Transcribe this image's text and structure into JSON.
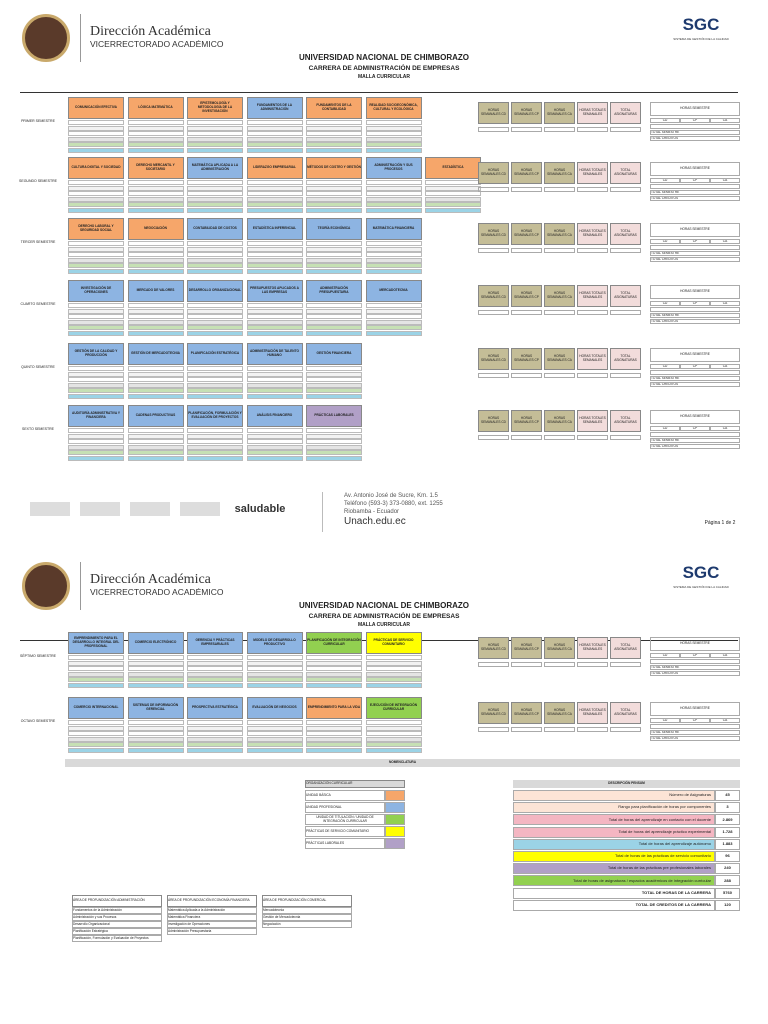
{
  "header": {
    "title": "Dirección Académica",
    "subtitle": "VICERRECTORADO ACADÉMICO",
    "logo": "SGC",
    "logo_note": "SISTEMA DE GESTIÓN DE LA CALIDAD",
    "university": "UNIVERSIDAD NACIONAL DE CHIMBORAZO",
    "career": "CARRERA DE ADMINISTRACIÓN DE EMPRESAS",
    "document": "MALLA CURRICULAR"
  },
  "side_headers": [
    "HORAS SEMANALES CD",
    "HORAS SEMANALES CP",
    "HORAS SEMANALES CA",
    "HORAS TOTALES SEMANALES",
    "TOTAL ASIGNATURAS"
  ],
  "hours": {
    "title": "HORAS SEMESTRE",
    "columns": [
      "CD",
      "CP",
      "CA"
    ],
    "total_semester": "TOTAL SEMESTRE",
    "total_credits": "TOTAL CRÉDITOS"
  },
  "semesters": [
    {
      "label": "PRIMER SEMESTRE",
      "courses": [
        {
          "name": "COMUNICACIÓN EFECTIVA",
          "color": "#f6a66a"
        },
        {
          "name": "LÓGICA MATEMÁTICA",
          "color": "#f6a66a"
        },
        {
          "name": "EPISTEMOLOGÍA Y METODOLOGÍA DE LA INVESTIGACIÓN",
          "color": "#f6a66a"
        },
        {
          "name": "FUNDAMENTOS DE LA ADMINISTRACIÓN",
          "color": "#8db4e2"
        },
        {
          "name": "FUNDAMENTOS DE LA CONTABILIDAD",
          "color": "#f6a66a"
        },
        {
          "name": "REALIDAD SOCIOECONÓMICA, CULTURAL Y ECOLÓGICA",
          "color": "#f6a66a"
        }
      ]
    },
    {
      "label": "SEGUNDO SEMESTRE",
      "courses": [
        {
          "name": "CULTURA DIGITAL Y SOCIEDAD",
          "color": "#f6a66a"
        },
        {
          "name": "DERECHO MERCANTIL Y SOCIETARIO",
          "color": "#f6a66a"
        },
        {
          "name": "MATEMÁTICA APLICADA A LA ADMINISTRACIÓN",
          "color": "#8db4e2"
        },
        {
          "name": "LIDERAZGO EMPRESARIAL",
          "color": "#f6a66a"
        },
        {
          "name": "MÉTODOS DE COSTEO Y GESTIÓN",
          "color": "#f6a66a"
        },
        {
          "name": "ADMINISTRACIÓN Y SUS PROCESOS",
          "color": "#8db4e2"
        },
        {
          "name": "ESTADÍSTICA",
          "color": "#f6a66a"
        }
      ]
    },
    {
      "label": "TERCER SEMESTRE",
      "courses": [
        {
          "name": "DERECHO LABORAL Y SEGURIDAD SOCIAL",
          "color": "#f6a66a"
        },
        {
          "name": "NEGOCIACIÓN",
          "color": "#f6a66a"
        },
        {
          "name": "CONTABILIDAD DE COSTOS",
          "color": "#8db4e2"
        },
        {
          "name": "ESTADÍSTICA INFERENCIAL",
          "color": "#8db4e2"
        },
        {
          "name": "TEORÍA ECONÓMICA",
          "color": "#8db4e2"
        },
        {
          "name": "MATEMÁTICA FINANCIERA",
          "color": "#8db4e2"
        }
      ]
    },
    {
      "label": "CUARTO SEMESTRE",
      "courses": [
        {
          "name": "INVESTIGACIÓN DE OPERACIONES",
          "color": "#8db4e2"
        },
        {
          "name": "MERCADO DE VALORES",
          "color": "#8db4e2"
        },
        {
          "name": "DESARROLLO ORGANIZACIONAL",
          "color": "#8db4e2"
        },
        {
          "name": "PRESUPUESTOS APLICADOS A LAS EMPRESAS",
          "color": "#8db4e2"
        },
        {
          "name": "ADMINISTRACIÓN PRESUPUESTARIA",
          "color": "#8db4e2"
        },
        {
          "name": "MERCADOTECNIA",
          "color": "#8db4e2"
        }
      ]
    },
    {
      "label": "QUINTO SEMESTRE",
      "courses": [
        {
          "name": "GESTIÓN DE LA CALIDAD Y PRODUCCIÓN",
          "color": "#8db4e2"
        },
        {
          "name": "GESTIÓN DE MERCADOTECNIA",
          "color": "#8db4e2"
        },
        {
          "name": "PLANIFICACIÓN ESTRATÉGICA",
          "color": "#8db4e2"
        },
        {
          "name": "ADMINISTRACIÓN DE TALENTO HUMANO",
          "color": "#8db4e2"
        },
        {
          "name": "GESTIÓN FINANCIERA",
          "color": "#8db4e2"
        }
      ]
    },
    {
      "label": "SEXTO SEMESTRE",
      "courses": [
        {
          "name": "AUDITORÍA ADMINISTRATIVA Y FINANCIERA",
          "color": "#8db4e2"
        },
        {
          "name": "CADENAS PRODUCTIVAS",
          "color": "#8db4e2"
        },
        {
          "name": "PLANIFICACIÓN, FORMULACIÓN Y EVALUACIÓN DE PROYECTOS",
          "color": "#8db4e2"
        },
        {
          "name": "ANÁLISIS FINANCIERO",
          "color": "#8db4e2"
        },
        {
          "name": "PRÁCTICAS LABORALES",
          "color": "#b1a0c7"
        }
      ]
    },
    {
      "label": "SÉPTIMO SEMESTRE",
      "courses": [
        {
          "name": "EMPRENDIMIENTO PARA EL DESARROLLO INTEGRAL DEL PROFESIONAL",
          "color": "#8db4e2"
        },
        {
          "name": "COMERCIO ELECTRÓNICO",
          "color": "#8db4e2"
        },
        {
          "name": "GERENCIA Y PRÁCTICAS EMPRESARIALES",
          "color": "#8db4e2"
        },
        {
          "name": "MODELO DE DESARROLLO PRODUCTIVO",
          "color": "#8db4e2"
        },
        {
          "name": "PLANIFICACIÓN DE INTEGRACIÓN CURRICULAR",
          "color": "#92d050"
        },
        {
          "name": "PRÁCTICAS DE SERVICIO COMUNITARIO",
          "color": "#ffff00"
        }
      ]
    },
    {
      "label": "OCTAVO SEMESTRE",
      "courses": [
        {
          "name": "COMERCIO INTERNACIONAL",
          "color": "#8db4e2"
        },
        {
          "name": "SISTEMAS DE INFORMACIÓN GERENCIAL",
          "color": "#8db4e2"
        },
        {
          "name": "PROSPECTIVA ESTRATÉGICA",
          "color": "#8db4e2"
        },
        {
          "name": "EVALUACIÓN DE NEGOCIOS",
          "color": "#8db4e2"
        },
        {
          "name": "EMPRENDIMIENTO PARA LA VIDA",
          "color": "#f6a66a"
        },
        {
          "name": "EJECUCIÓN DE INTEGRACIÓN CURRICULAR",
          "color": "#92d050"
        }
      ]
    }
  ],
  "footer": {
    "address": "Av. Antonio José de Sucre, Km. 1.5",
    "phone": "Teléfono (593-3) 373-0880, ext. 1255",
    "city": "Riobamba - Ecuador",
    "web": "Unach.edu.ec",
    "brand": "saludable",
    "page": "Página 1 de 2"
  },
  "nomenclature": "NOMENCLATURA",
  "legend": [
    {
      "label": "UNIDAD BÁSICA",
      "color": "#f6a66a"
    },
    {
      "label": "UNIDAD PROFESIONAL",
      "color": "#8db4e2"
    },
    {
      "label": "UNIDAD DE TITULACIÓN / UNIDAD DE INTEGRACIÓN CURRICULAR",
      "color": "#92d050"
    },
    {
      "label": "PRÁCTICAS DE SERVICIO COMUNITARIO",
      "color": "#ffff00"
    },
    {
      "label": "PRÁCTICAS LABORALES",
      "color": "#b1a0c7"
    }
  ],
  "legend_title": "ORGANIZACIÓN CURRICULAR",
  "summary": {
    "title": "DESCRIPCIÓN PENSUM",
    "rows": [
      {
        "label": "Número de Asignaturas",
        "value": "45",
        "color": "#fce4d6"
      },
      {
        "label": "Rango para planificación de horas por componentes",
        "value": "3",
        "color": "#fce4d6"
      },
      {
        "label": "Total de horas del aprendizaje en contacto con el docente",
        "value": "2.869",
        "color": "#f4b6c2"
      },
      {
        "label": "Total de horas del aprendizaje práctico experimental",
        "value": "1.728",
        "color": "#f4b6c2"
      },
      {
        "label": "Total de horas del aprendizaje autónomo",
        "value": "1.883",
        "color": "#9bd3e6"
      },
      {
        "label": "Total de horas de las prácticas de servicio comunitario",
        "value": "96",
        "color": "#ffff00"
      },
      {
        "label": "Total de horas de las prácticas pre profesionales laborales",
        "value": "240",
        "color": "#b1a0c7"
      },
      {
        "label": "Total de horas de asignaturas / espacios académicos de integración curricular",
        "value": "288",
        "color": "#92d050"
      },
      {
        "label": "TOTAL DE HORAS DE LA CARRERA",
        "value": "5760",
        "color": "#ffffff"
      },
      {
        "label": "TOTAL DE CREDITOS DE LA CARRERA",
        "value": "120",
        "color": "#ffffff"
      }
    ]
  },
  "areas": [
    {
      "title": "ÁREA DE PROFUNDIZACIÓN ADMINISTRACIÓN",
      "items": [
        "Fundamentos de la Administración",
        "Administración y sus Procesos",
        "Desarrollo Organizacional",
        "Planificación Estratégica",
        "Planificación, Formulación y Evaluación de Proyectos"
      ]
    },
    {
      "title": "ÁREA DE PROFUNDIZACIÓN ECONOMÍA FINANCIERA",
      "items": [
        "Matemática Aplicada a la Administración",
        "Matemática Financiera",
        "Investigación de Operaciones",
        "Administración Presupuestaria"
      ]
    },
    {
      "title": "ÁREA DE PROFUNDIZACIÓN COMERCIAL",
      "items": [
        "Mercadotecnia",
        "Gestión de Mercadotecnia",
        "Negociación"
      ]
    }
  ]
}
